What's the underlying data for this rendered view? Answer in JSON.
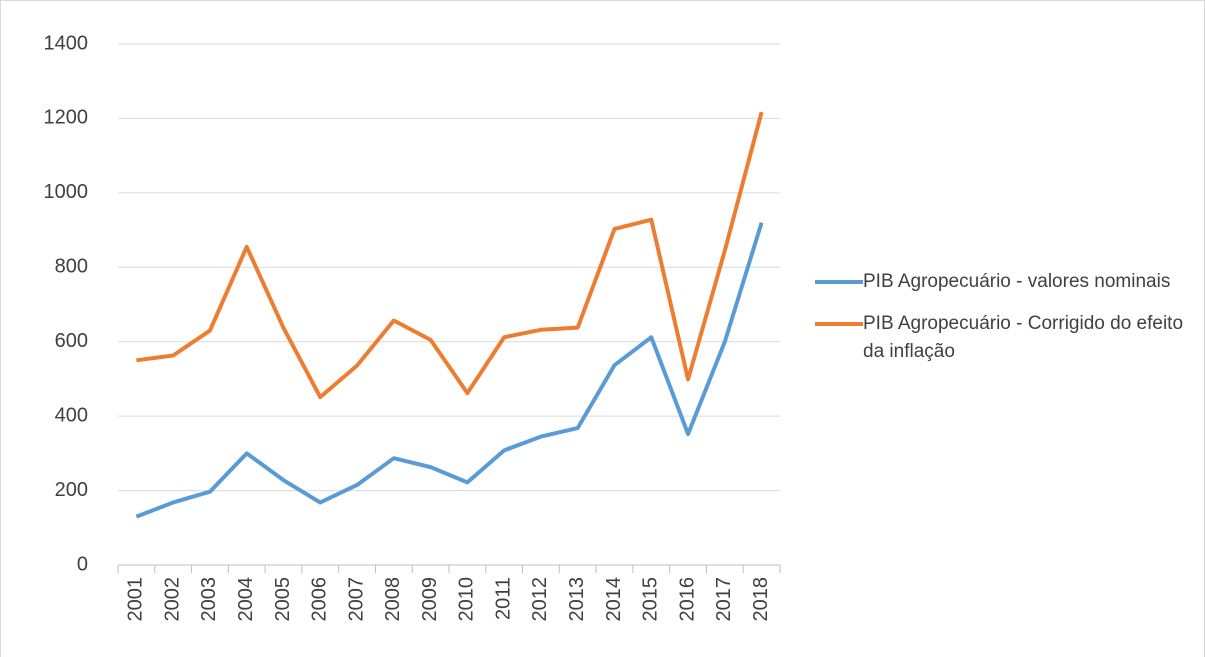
{
  "chart_data": {
    "type": "line",
    "categories": [
      "2001",
      "2002",
      "2003",
      "2004",
      "2005",
      "2006",
      "2007",
      "2008",
      "2009",
      "2010",
      "2011",
      "2012",
      "2013",
      "2014",
      "2015",
      "2016",
      "2017",
      "2018"
    ],
    "series": [
      {
        "name": "PIB Agropecuário - valores nominais",
        "color": "#5b9bd5",
        "values": [
          130,
          168,
          197,
          300,
          228,
          168,
          215,
          287,
          263,
          222,
          308,
          345,
          368,
          537,
          612,
          352,
          600,
          920
        ]
      },
      {
        "name": "PIB Agropecuário - Corrigido do efeito da inflação",
        "color": "#ed7d31",
        "values": [
          550,
          563,
          630,
          855,
          637,
          451,
          536,
          657,
          605,
          462,
          612,
          632,
          638,
          903,
          928,
          499,
          845,
          1217
        ]
      }
    ],
    "ylim": [
      0,
      1400
    ],
    "yticks": [
      0,
      200,
      400,
      600,
      800,
      1000,
      1200,
      1400
    ],
    "grid": true,
    "legend": "right"
  }
}
